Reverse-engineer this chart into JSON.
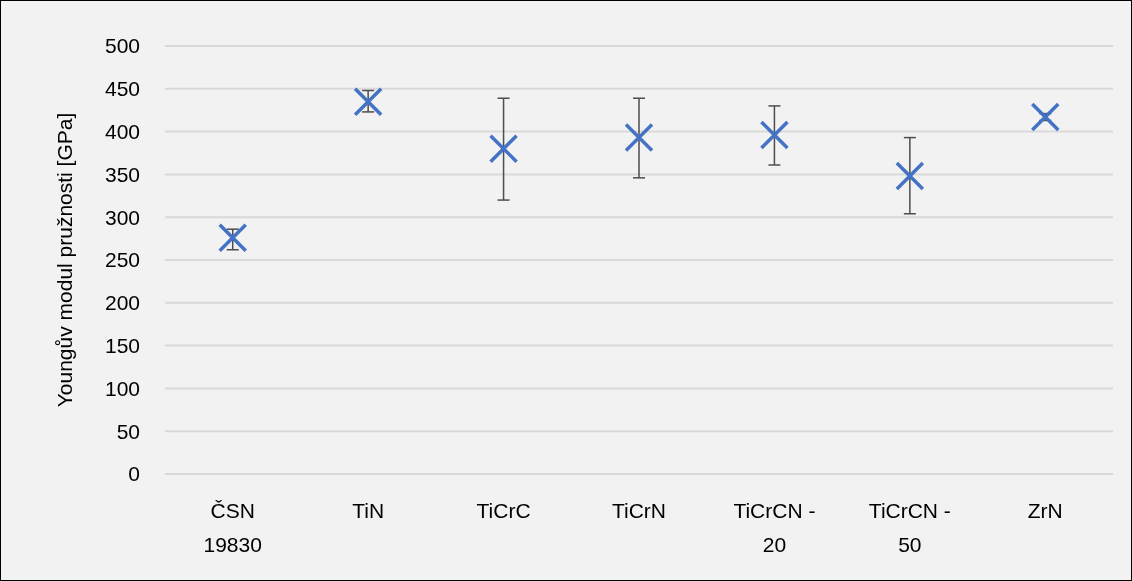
{
  "chart_data": {
    "type": "scatter",
    "ylabel": "Youngův modul pružnosti [GPa]",
    "categories": [
      "ČSN 19830",
      "TiN",
      "TiCrC",
      "TiCrN",
      "TiCrCN - 20",
      "TiCrCN - 50",
      "ZrN"
    ],
    "series": [
      {
        "color": "#4472c4",
        "values": [
          276,
          435,
          380,
          393,
          396,
          348,
          417
        ],
        "errors": [
          [
            262,
            286
          ],
          [
            423,
            448
          ],
          [
            320,
            439
          ],
          [
            346,
            439
          ],
          [
            361,
            430
          ],
          [
            304,
            393
          ],
          [
            413,
            421
          ]
        ]
      }
    ],
    "ylim": [
      0,
      500
    ],
    "yticks": [
      0,
      50,
      100,
      150,
      200,
      250,
      300,
      350,
      400,
      450,
      500
    ],
    "grid": "y",
    "marker": "cross"
  }
}
